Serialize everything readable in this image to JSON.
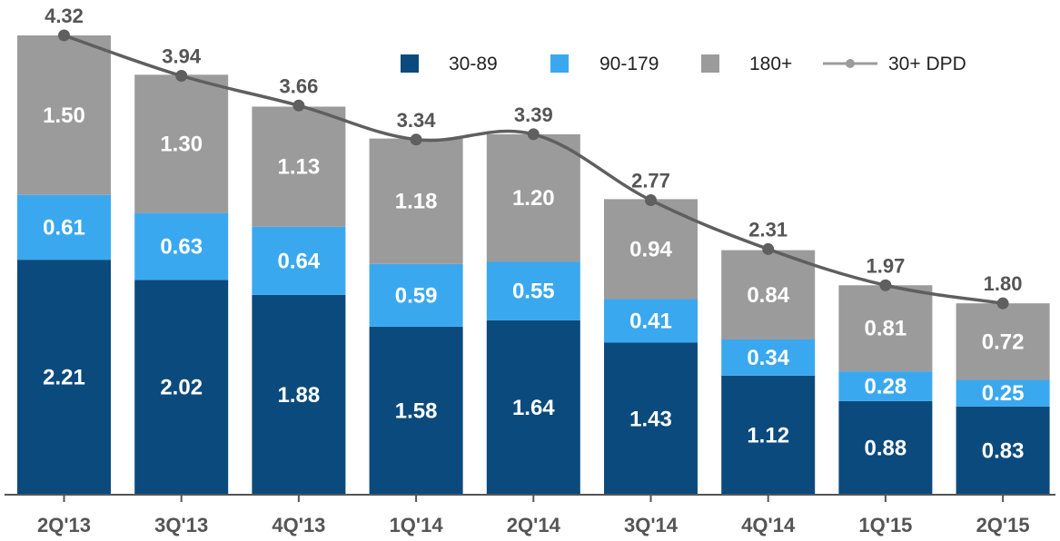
{
  "chart_data": {
    "type": "bar",
    "stacked": true,
    "title": "",
    "xlabel": "",
    "ylabel": "",
    "ylim": [
      0,
      4.32
    ],
    "grid": false,
    "legend_position": "top-right",
    "categories": [
      "2Q'13",
      "3Q'13",
      "4Q'13",
      "1Q'14",
      "2Q'14",
      "3Q'14",
      "4Q'14",
      "1Q'15",
      "2Q'15"
    ],
    "series": [
      {
        "name": "30-89",
        "color": "#0b4a7d",
        "values": [
          2.21,
          2.02,
          1.88,
          1.58,
          1.64,
          1.43,
          1.12,
          0.88,
          0.83
        ],
        "labels": [
          "2.21",
          "2.02",
          "1.88",
          "1.58",
          "1.64",
          "1.43",
          "1.12",
          "0.88",
          "0.83"
        ]
      },
      {
        "name": "90-179",
        "color": "#3aa8ef",
        "values": [
          0.61,
          0.63,
          0.64,
          0.59,
          0.55,
          0.41,
          0.34,
          0.28,
          0.25
        ],
        "labels": [
          "0.61",
          "0.63",
          "0.64",
          "0.59",
          "0.55",
          "0.41",
          "0.34",
          "0.28",
          "0.25"
        ]
      },
      {
        "name": "180+",
        "color": "#9b9b9b",
        "values": [
          1.5,
          1.3,
          1.13,
          1.18,
          1.2,
          0.94,
          0.84,
          0.81,
          0.72
        ],
        "labels": [
          "1.50",
          "1.30",
          "1.13",
          "1.18",
          "1.20",
          "0.94",
          "0.84",
          "0.81",
          "0.72"
        ]
      }
    ],
    "line_series": {
      "name": "30+ DPD",
      "color": "#5f5f5f",
      "values": [
        4.32,
        3.94,
        3.66,
        3.34,
        3.39,
        2.77,
        2.31,
        1.97,
        1.8
      ],
      "labels": [
        "4.32",
        "3.94",
        "3.66",
        "3.34",
        "3.39",
        "2.77",
        "2.31",
        "1.97",
        "1.80"
      ]
    }
  }
}
